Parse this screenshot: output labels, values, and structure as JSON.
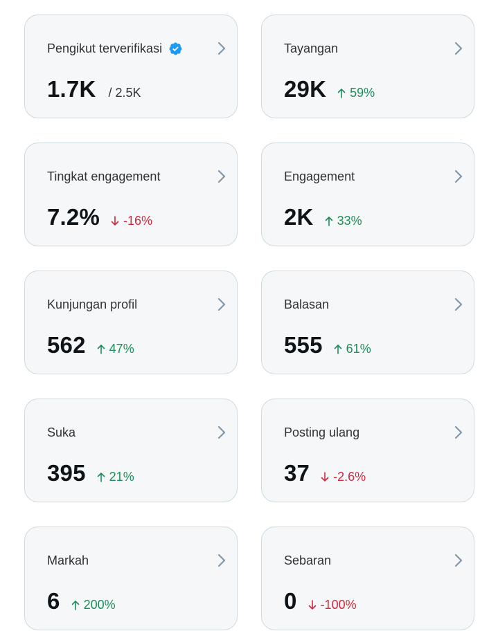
{
  "cards": [
    {
      "title": "Pengikut terverifikasi",
      "value": "1.7K",
      "secondary": "/ 2.5K",
      "verified": true
    },
    {
      "title": "Tayangan",
      "value": "29K",
      "change": "59%",
      "direction": "up"
    },
    {
      "title": "Tingkat engagement",
      "value": "7.2%",
      "change": "-16%",
      "direction": "down"
    },
    {
      "title": "Engagement",
      "value": "2K",
      "change": "33%",
      "direction": "up"
    },
    {
      "title": "Kunjungan profil",
      "value": "562",
      "change": "47%",
      "direction": "up"
    },
    {
      "title": "Balasan",
      "value": "555",
      "change": "61%",
      "direction": "up"
    },
    {
      "title": "Suka",
      "value": "395",
      "change": "21%",
      "direction": "up"
    },
    {
      "title": "Posting ulang",
      "value": "37",
      "change": "-2.6%",
      "direction": "down"
    },
    {
      "title": "Markah",
      "value": "6",
      "change": "200%",
      "direction": "up"
    },
    {
      "title": "Sebaran",
      "value": "0",
      "change": "-100%",
      "direction": "down"
    }
  ],
  "colors": {
    "up": "#1e8c5a",
    "down": "#d1293d",
    "verified": "#1d9bf0",
    "chevron": "#8396a8"
  },
  "icons": {
    "verified": "verified-badge-icon",
    "chevron": "chevron-right-icon",
    "up": "arrow-up-icon",
    "down": "arrow-down-icon"
  }
}
